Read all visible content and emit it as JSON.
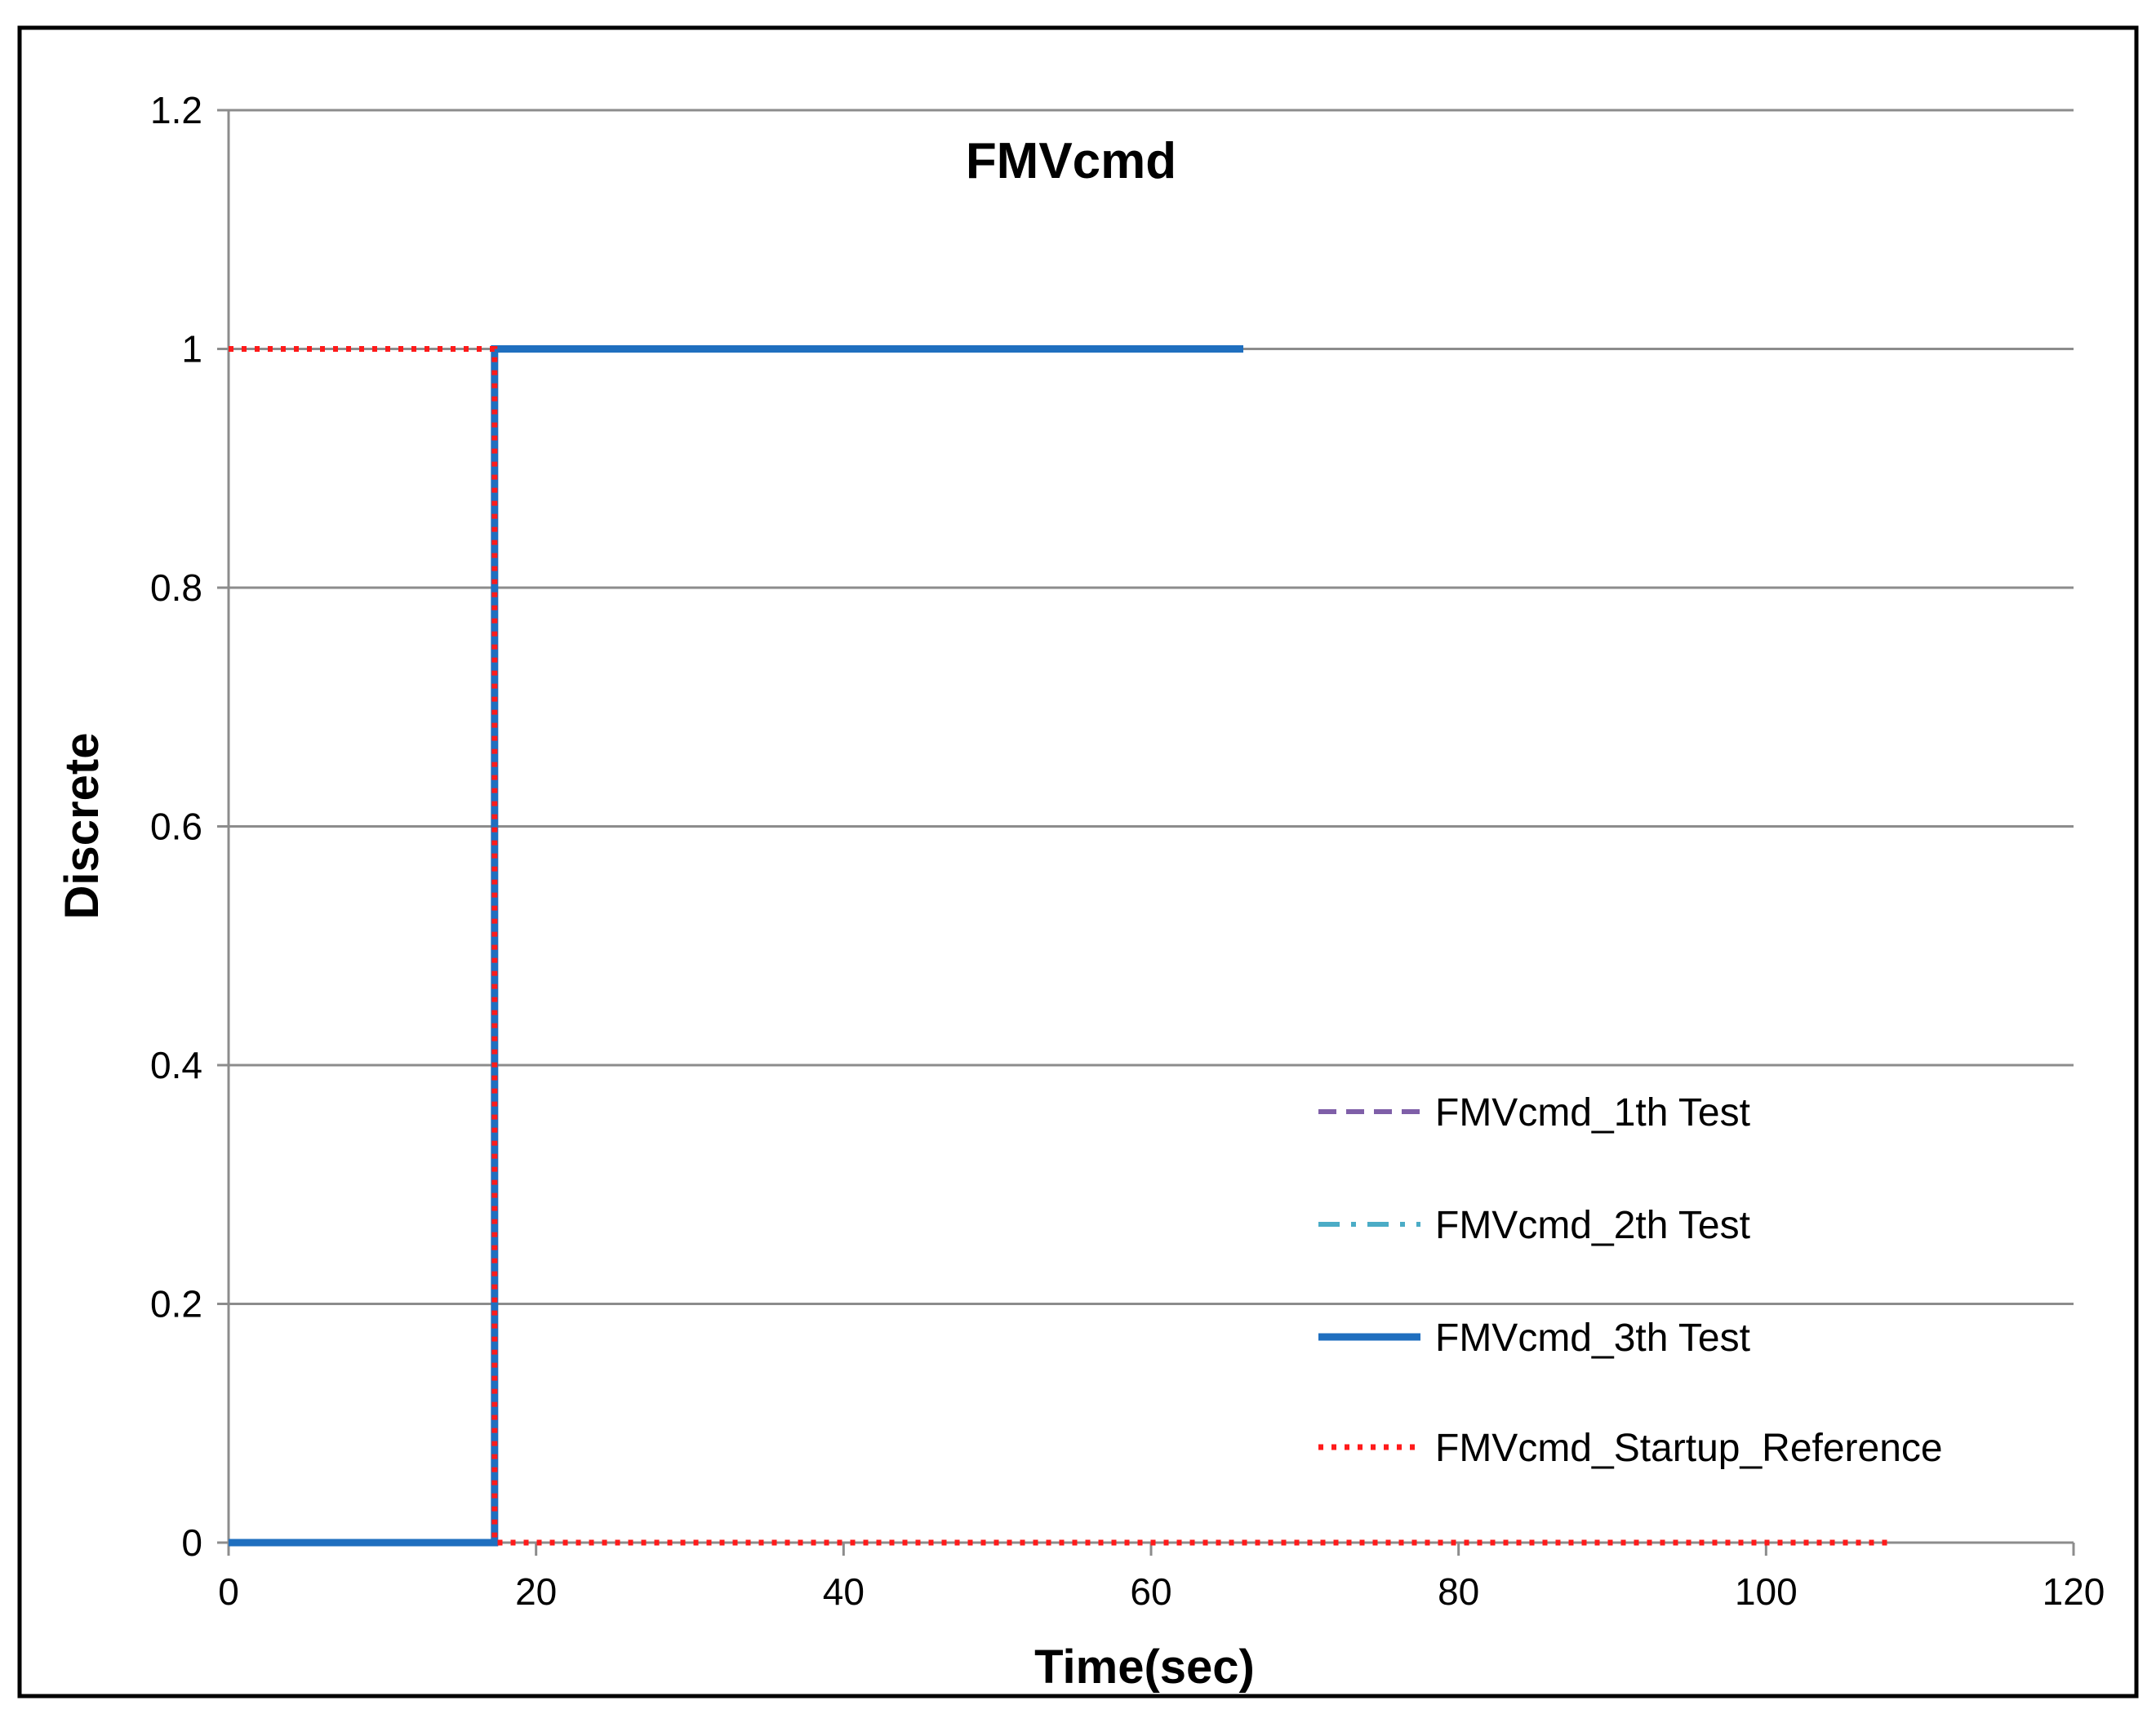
{
  "chart_data": {
    "type": "line",
    "title": "FMVcmd",
    "xlabel": "Time(sec)",
    "ylabel": "Discrete",
    "xlim": [
      0,
      120
    ],
    "ylim": [
      0,
      1.2
    ],
    "x_ticks": [
      0,
      20,
      40,
      60,
      80,
      100,
      120
    ],
    "y_ticks": [
      0,
      0.2,
      0.4,
      0.6,
      0.8,
      1,
      1.2
    ],
    "x_tick_labels": [
      "0",
      "20",
      "40",
      "60",
      "80",
      "100",
      "120"
    ],
    "y_tick_labels": [
      "0",
      "0.2",
      "0.4",
      "0.6",
      "0.8",
      "1",
      "1.2"
    ],
    "grid": "horizontal",
    "legend_position": "lower-right",
    "series": [
      {
        "name": "FMVcmd_1th Test",
        "color": "#7f5fa8",
        "style": "dashed",
        "x": [
          0,
          17.3,
          17.3,
          66
        ],
        "y": [
          0,
          0,
          1,
          1
        ]
      },
      {
        "name": "FMVcmd_2th Test",
        "color": "#4bacc6",
        "style": "dash-dot",
        "x": [
          0,
          17.3,
          17.3,
          66
        ],
        "y": [
          0,
          0,
          1,
          1
        ]
      },
      {
        "name": "FMVcmd_3th Test",
        "color": "#1f6fbf",
        "style": "solid",
        "x": [
          0,
          17.3,
          17.3,
          66
        ],
        "y": [
          0,
          0,
          1,
          1
        ]
      },
      {
        "name": "FMVcmd_Startup_Reference",
        "color": "#ff1a1a",
        "style": "dotted",
        "x": [
          0,
          17.3,
          17.3,
          108
        ],
        "y": [
          1,
          1,
          0,
          0
        ]
      }
    ]
  }
}
